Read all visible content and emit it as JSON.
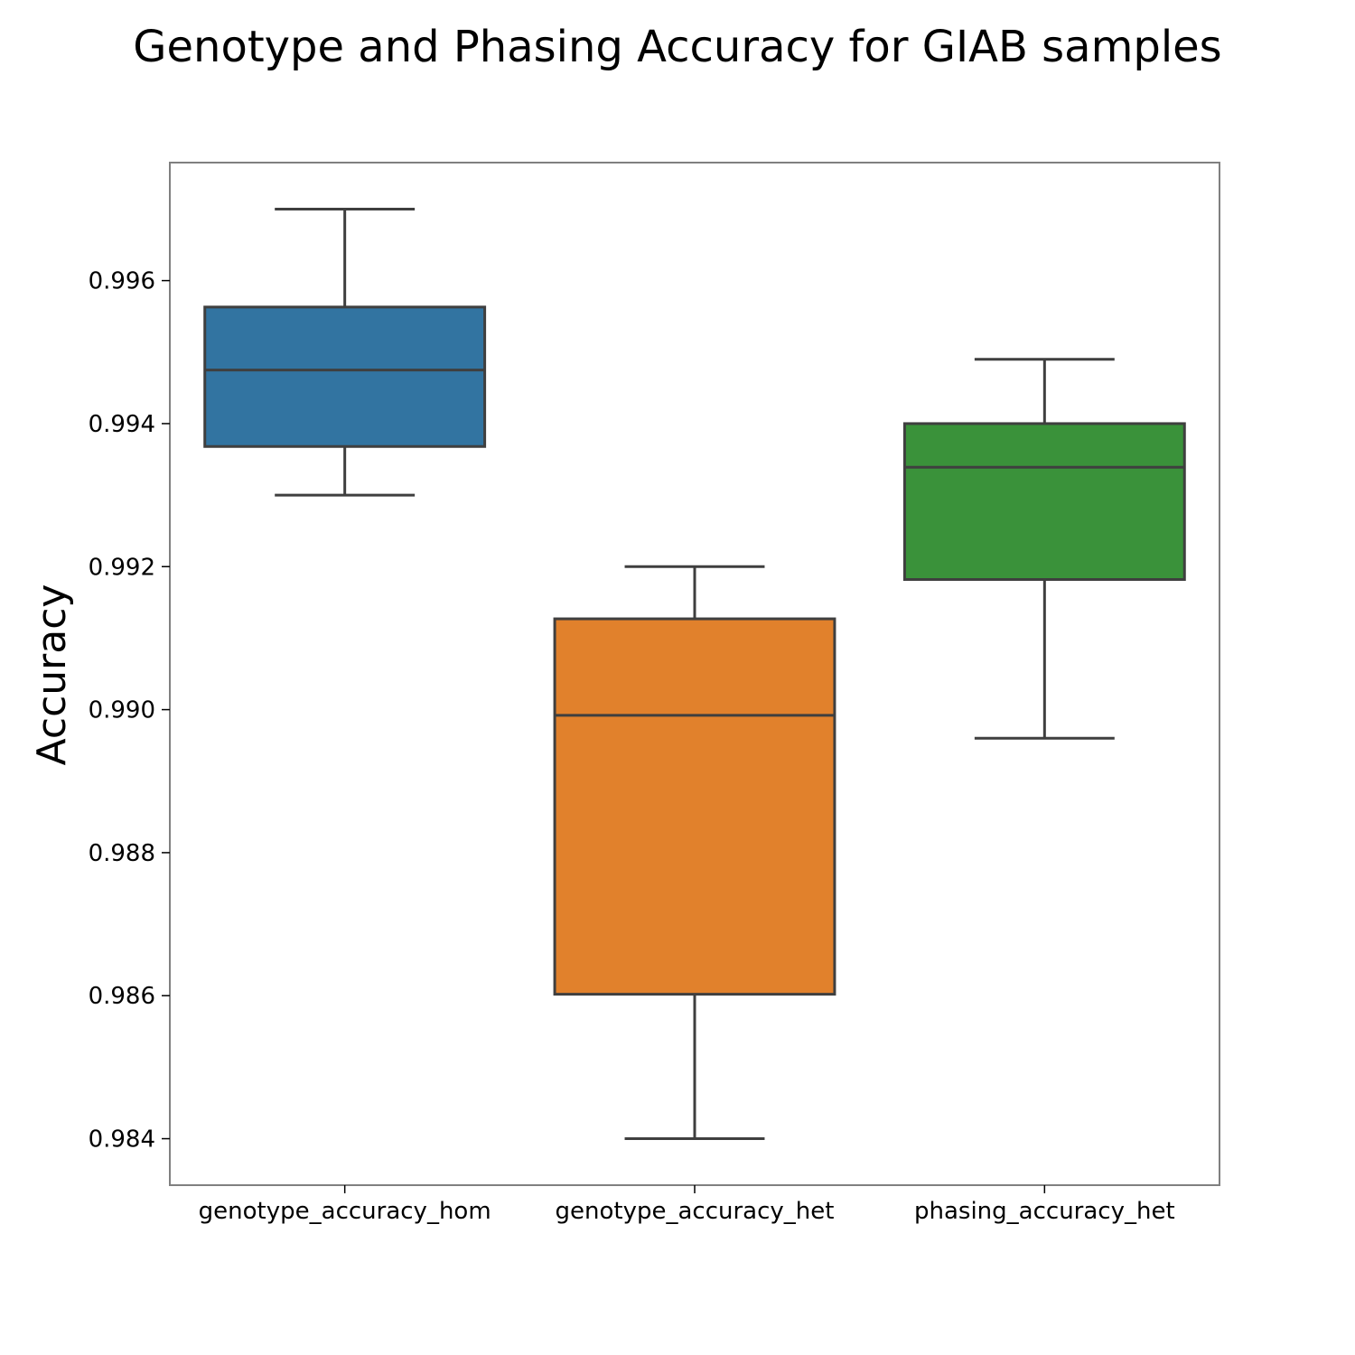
{
  "chart_data": {
    "type": "box",
    "title": "Genotype and Phasing Accuracy for GIAB samples",
    "xlabel": "",
    "ylabel": "Accuracy",
    "ylim": [
      0.98335,
      0.99765
    ],
    "yticks": [
      "0.984",
      "0.986",
      "0.988",
      "0.990",
      "0.992",
      "0.994",
      "0.996"
    ],
    "grid": false,
    "categories": [
      "genotype_accuracy_hom",
      "genotype_accuracy_het",
      "phasing_accuracy_het"
    ],
    "boxes": [
      {
        "category": "genotype_accuracy_hom",
        "whisker_low": 0.993,
        "q1": 0.99368,
        "median": 0.99475,
        "q3": 0.99563,
        "whisker_high": 0.997,
        "color": "#3274a1"
      },
      {
        "category": "genotype_accuracy_het",
        "whisker_low": 0.984,
        "q1": 0.98602,
        "median": 0.98992,
        "q3": 0.99127,
        "whisker_high": 0.992,
        "color": "#e1812c"
      },
      {
        "category": "phasing_accuracy_het",
        "whisker_low": 0.9896,
        "q1": 0.99182,
        "median": 0.99339,
        "q3": 0.994,
        "whisker_high": 0.9949,
        "color": "#3a923a"
      }
    ],
    "line_color": "#3f3f3f",
    "frame_color": "#808080"
  }
}
